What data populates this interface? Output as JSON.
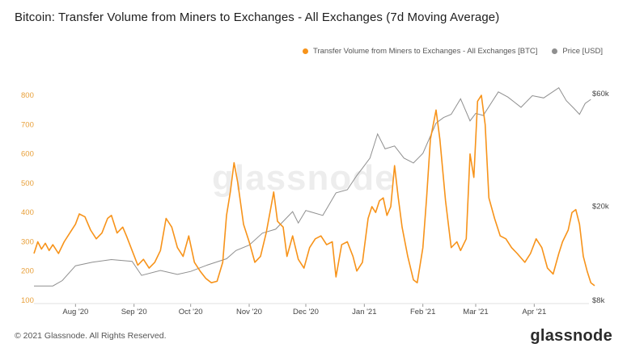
{
  "title": "Bitcoin: Transfer Volume from Miners to Exchanges - All Exchanges (7d Moving Average)",
  "footer": {
    "copyright": "© 2021 Glassnode. All Rights Reserved.",
    "brand": "glassnode"
  },
  "watermark": "glassnode",
  "colors": {
    "volume": "#f7931a",
    "price": "#8f8f8f"
  },
  "chart_data": {
    "type": "line",
    "legend_position": "top-right",
    "grid": false,
    "x_range": [
      "2020-07-10",
      "2021-04-30"
    ],
    "x_ticks": [
      {
        "label": "Aug '20",
        "date": "2020-08-01"
      },
      {
        "label": "Sep '20",
        "date": "2020-09-01"
      },
      {
        "label": "Oct '20",
        "date": "2020-10-01"
      },
      {
        "label": "Nov '20",
        "date": "2020-11-01"
      },
      {
        "label": "Dec '20",
        "date": "2020-12-01"
      },
      {
        "label": "Jan '21",
        "date": "2021-01-01"
      },
      {
        "label": "Feb '21",
        "date": "2021-02-01"
      },
      {
        "label": "Mar '21",
        "date": "2021-03-01"
      },
      {
        "label": "Apr '21",
        "date": "2021-04-01"
      }
    ],
    "y_left": {
      "ticks": [
        "100",
        "200",
        "300",
        "400",
        "500",
        "600",
        "700",
        "800"
      ],
      "range": [
        100,
        850
      ]
    },
    "y_right": {
      "ticks": [
        "$8k",
        "$20k",
        "$60k"
      ],
      "scale": "log",
      "range": [
        8000,
        68000
      ]
    },
    "series": [
      {
        "name": "Transfer Volume from Miners to Exchanges - All Exchanges [BTC]",
        "axis": "left",
        "points": [
          [
            "2020-07-10",
            260
          ],
          [
            "2020-07-12",
            300
          ],
          [
            "2020-07-14",
            275
          ],
          [
            "2020-07-16",
            295
          ],
          [
            "2020-07-18",
            270
          ],
          [
            "2020-07-20",
            290
          ],
          [
            "2020-07-23",
            260
          ],
          [
            "2020-07-26",
            300
          ],
          [
            "2020-07-29",
            330
          ],
          [
            "2020-08-01",
            360
          ],
          [
            "2020-08-03",
            395
          ],
          [
            "2020-08-06",
            385
          ],
          [
            "2020-08-09",
            340
          ],
          [
            "2020-08-12",
            310
          ],
          [
            "2020-08-15",
            330
          ],
          [
            "2020-08-18",
            380
          ],
          [
            "2020-08-20",
            390
          ],
          [
            "2020-08-23",
            330
          ],
          [
            "2020-08-26",
            350
          ],
          [
            "2020-08-28",
            320
          ],
          [
            "2020-08-31",
            270
          ],
          [
            "2020-09-03",
            220
          ],
          [
            "2020-09-06",
            240
          ],
          [
            "2020-09-09",
            210
          ],
          [
            "2020-09-12",
            230
          ],
          [
            "2020-09-15",
            270
          ],
          [
            "2020-09-18",
            380
          ],
          [
            "2020-09-21",
            350
          ],
          [
            "2020-09-24",
            280
          ],
          [
            "2020-09-27",
            250
          ],
          [
            "2020-09-30",
            320
          ],
          [
            "2020-10-03",
            230
          ],
          [
            "2020-10-06",
            200
          ],
          [
            "2020-10-09",
            175
          ],
          [
            "2020-10-12",
            160
          ],
          [
            "2020-10-15",
            165
          ],
          [
            "2020-10-18",
            230
          ],
          [
            "2020-10-20",
            390
          ],
          [
            "2020-10-22",
            470
          ],
          [
            "2020-10-24",
            570
          ],
          [
            "2020-10-26",
            500
          ],
          [
            "2020-10-29",
            360
          ],
          [
            "2020-11-01",
            300
          ],
          [
            "2020-11-04",
            230
          ],
          [
            "2020-11-07",
            250
          ],
          [
            "2020-11-10",
            330
          ],
          [
            "2020-11-12",
            400
          ],
          [
            "2020-11-14",
            470
          ],
          [
            "2020-11-16",
            370
          ],
          [
            "2020-11-19",
            350
          ],
          [
            "2020-11-21",
            250
          ],
          [
            "2020-11-24",
            320
          ],
          [
            "2020-11-27",
            240
          ],
          [
            "2020-11-30",
            210
          ],
          [
            "2020-12-03",
            280
          ],
          [
            "2020-12-06",
            310
          ],
          [
            "2020-12-09",
            320
          ],
          [
            "2020-12-12",
            290
          ],
          [
            "2020-12-15",
            300
          ],
          [
            "2020-12-17",
            180
          ],
          [
            "2020-12-20",
            290
          ],
          [
            "2020-12-23",
            300
          ],
          [
            "2020-12-26",
            250
          ],
          [
            "2020-12-28",
            200
          ],
          [
            "2020-12-31",
            230
          ],
          [
            "2021-01-03",
            380
          ],
          [
            "2021-01-05",
            420
          ],
          [
            "2021-01-07",
            400
          ],
          [
            "2021-01-09",
            440
          ],
          [
            "2021-01-11",
            450
          ],
          [
            "2021-01-13",
            390
          ],
          [
            "2021-01-15",
            420
          ],
          [
            "2021-01-17",
            560
          ],
          [
            "2021-01-19",
            450
          ],
          [
            "2021-01-21",
            350
          ],
          [
            "2021-01-24",
            250
          ],
          [
            "2021-01-27",
            170
          ],
          [
            "2021-01-29",
            160
          ],
          [
            "2021-02-01",
            280
          ],
          [
            "2021-02-03",
            450
          ],
          [
            "2021-02-05",
            650
          ],
          [
            "2021-02-08",
            750
          ],
          [
            "2021-02-10",
            650
          ],
          [
            "2021-02-13",
            440
          ],
          [
            "2021-02-16",
            280
          ],
          [
            "2021-02-19",
            300
          ],
          [
            "2021-02-21",
            270
          ],
          [
            "2021-02-24",
            310
          ],
          [
            "2021-02-26",
            600
          ],
          [
            "2021-02-28",
            520
          ],
          [
            "2021-03-02",
            780
          ],
          [
            "2021-03-04",
            800
          ],
          [
            "2021-03-06",
            700
          ],
          [
            "2021-03-08",
            450
          ],
          [
            "2021-03-11",
            380
          ],
          [
            "2021-03-14",
            320
          ],
          [
            "2021-03-17",
            310
          ],
          [
            "2021-03-20",
            280
          ],
          [
            "2021-03-23",
            260
          ],
          [
            "2021-03-27",
            230
          ],
          [
            "2021-03-30",
            260
          ],
          [
            "2021-04-02",
            310
          ],
          [
            "2021-04-05",
            280
          ],
          [
            "2021-04-08",
            210
          ],
          [
            "2021-04-11",
            190
          ],
          [
            "2021-04-14",
            260
          ],
          [
            "2021-04-16",
            300
          ],
          [
            "2021-04-19",
            340
          ],
          [
            "2021-04-21",
            400
          ],
          [
            "2021-04-23",
            410
          ],
          [
            "2021-04-25",
            360
          ],
          [
            "2021-04-27",
            250
          ],
          [
            "2021-04-29",
            200
          ],
          [
            "2021-05-01",
            160
          ],
          [
            "2021-05-03",
            150
          ]
        ]
      },
      {
        "name": "Price [USD]",
        "axis": "right",
        "points": [
          [
            "2020-07-10",
            9200
          ],
          [
            "2020-07-20",
            9200
          ],
          [
            "2020-07-25",
            9700
          ],
          [
            "2020-08-01",
            11200
          ],
          [
            "2020-08-10",
            11600
          ],
          [
            "2020-08-20",
            11900
          ],
          [
            "2020-08-31",
            11700
          ],
          [
            "2020-09-05",
            10200
          ],
          [
            "2020-09-15",
            10700
          ],
          [
            "2020-09-24",
            10300
          ],
          [
            "2020-10-01",
            10600
          ],
          [
            "2020-10-10",
            11300
          ],
          [
            "2020-10-20",
            12000
          ],
          [
            "2020-10-25",
            13000
          ],
          [
            "2020-11-01",
            13700
          ],
          [
            "2020-11-08",
            15400
          ],
          [
            "2020-11-15",
            16000
          ],
          [
            "2020-11-24",
            19000
          ],
          [
            "2020-11-27",
            17000
          ],
          [
            "2020-12-01",
            19200
          ],
          [
            "2020-12-10",
            18300
          ],
          [
            "2020-12-17",
            22800
          ],
          [
            "2020-12-23",
            23500
          ],
          [
            "2020-12-28",
            27000
          ],
          [
            "2020-12-31",
            29000
          ],
          [
            "2021-01-04",
            32000
          ],
          [
            "2021-01-08",
            40500
          ],
          [
            "2021-01-12",
            35000
          ],
          [
            "2021-01-17",
            36000
          ],
          [
            "2021-01-22",
            32000
          ],
          [
            "2021-01-27",
            30500
          ],
          [
            "2021-02-01",
            33500
          ],
          [
            "2021-02-08",
            45000
          ],
          [
            "2021-02-12",
            47500
          ],
          [
            "2021-02-16",
            49000
          ],
          [
            "2021-02-21",
            57000
          ],
          [
            "2021-02-26",
            46000
          ],
          [
            "2021-03-01",
            49500
          ],
          [
            "2021-03-05",
            48500
          ],
          [
            "2021-03-13",
            61000
          ],
          [
            "2021-03-18",
            58000
          ],
          [
            "2021-03-25",
            52500
          ],
          [
            "2021-03-31",
            58800
          ],
          [
            "2021-04-06",
            57500
          ],
          [
            "2021-04-14",
            63500
          ],
          [
            "2021-04-18",
            56000
          ],
          [
            "2021-04-22",
            52000
          ],
          [
            "2021-04-25",
            49000
          ],
          [
            "2021-04-28",
            54500
          ],
          [
            "2021-05-01",
            56700
          ]
        ]
      }
    ]
  }
}
